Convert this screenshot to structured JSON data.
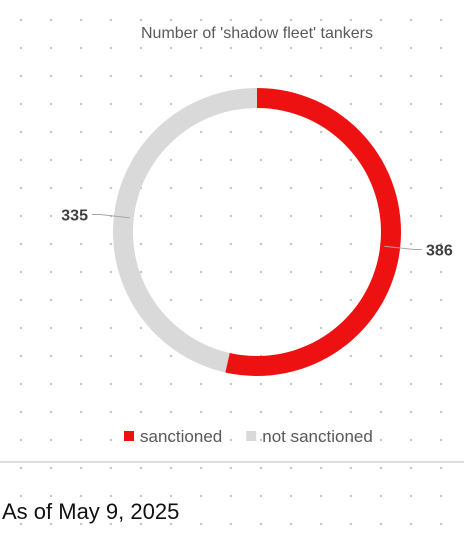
{
  "chart_data": {
    "type": "donut",
    "title": "Number of 'shadow fleet' tankers",
    "categories": [
      "sanctioned",
      "not sanctioned"
    ],
    "values": [
      386,
      335
    ],
    "colors": [
      "#ee1111",
      "#d9d9d9"
    ],
    "legend": "bottom"
  },
  "footnote": "As of May 9, 2025"
}
